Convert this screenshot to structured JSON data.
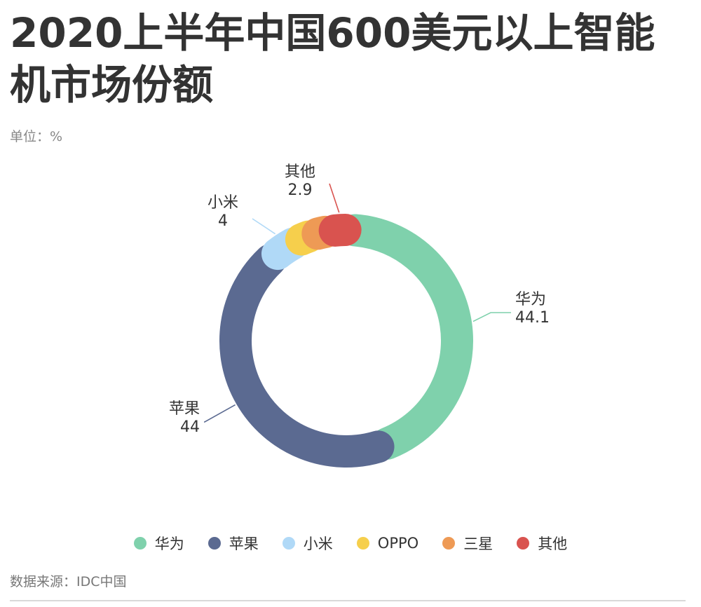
{
  "page": {
    "title": "2020上半年中国600美元以上智能机市场份额",
    "unit": "单位：%",
    "source": "数据来源：IDC中国"
  },
  "chart_data": {
    "type": "donut",
    "title": "2020上半年中国600美元以上智能机市场份额",
    "unit": "%",
    "slices": [
      {
        "label": "华为",
        "value": 44.1,
        "color": "#7fd1ac",
        "show_label": true
      },
      {
        "label": "苹果",
        "value": 44,
        "color": "#5b6a91",
        "show_label": true
      },
      {
        "label": "小米",
        "value": 4,
        "color": "#b0d9f7",
        "show_label": true
      },
      {
        "label": "OPPO",
        "value": 2.5,
        "color": "#f6cf4c",
        "show_label": false
      },
      {
        "label": "三星",
        "value": 2.5,
        "color": "#ee9a55",
        "show_label": false
      },
      {
        "label": "其他",
        "value": 2.9,
        "color": "#d9534f",
        "show_label": true
      }
    ],
    "legend_position": "bottom"
  }
}
